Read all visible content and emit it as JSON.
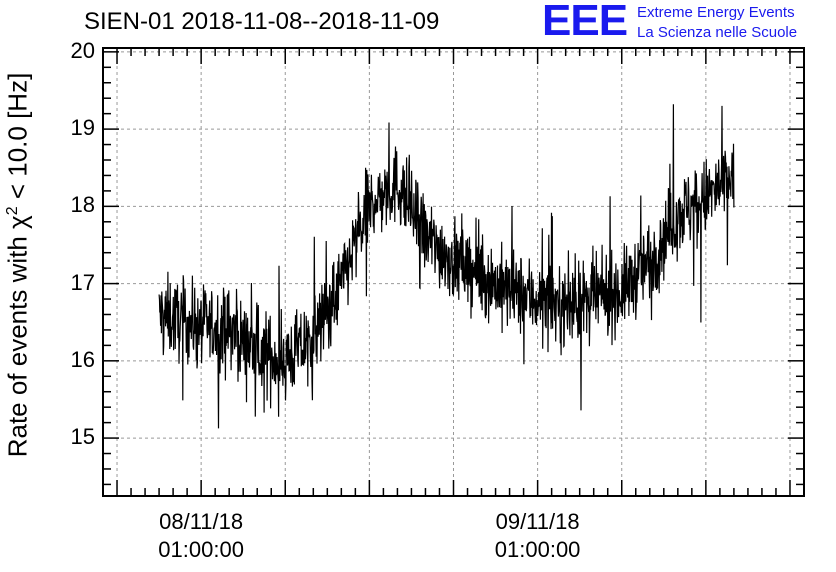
{
  "header": {
    "title": "SIEN-01 2018-11-08--2018-11-09",
    "logo_mark": "EEE",
    "logo_line1": "Extreme Energy Events",
    "logo_line2": "La Scienza nelle Scuole"
  },
  "colors": {
    "logo": "#1a1aee",
    "line": "#000000",
    "grid": "#999999"
  },
  "chart_data": {
    "type": "line",
    "title": "SIEN-01 2018-11-08--2018-11-09",
    "ylabel_pre": "Rate of events with ",
    "ylabel_sym": "χ",
    "ylabel_sup": "2",
    "ylabel_post": " < 10.0 [Hz]",
    "xlabel": "",
    "x_ticks": [
      {
        "label_date": "08/11/18",
        "label_time": "01:00:00",
        "hours": 0
      },
      {
        "label_date": "09/11/18",
        "label_time": "01:00:00",
        "hours": 24
      }
    ],
    "xlim_hours": [
      -7,
      43
    ],
    "ylim": [
      14.25,
      20.05
    ],
    "y_ticks": [
      15,
      16,
      17,
      18,
      19,
      20
    ],
    "grid": true,
    "series_trend": {
      "x_hours": [
        -3,
        -1,
        2,
        4,
        6,
        8,
        10,
        12,
        14,
        16,
        18,
        20,
        22,
        24,
        26,
        28,
        30,
        32,
        34,
        36,
        38
      ],
      "y": [
        16.6,
        16.5,
        16.4,
        16.1,
        16.0,
        16.3,
        17.0,
        18.0,
        18.3,
        17.6,
        17.3,
        17.1,
        16.9,
        16.8,
        16.7,
        16.8,
        16.9,
        17.3,
        17.9,
        18.1,
        18.4
      ]
    },
    "noise_amplitude": 0.55
  }
}
